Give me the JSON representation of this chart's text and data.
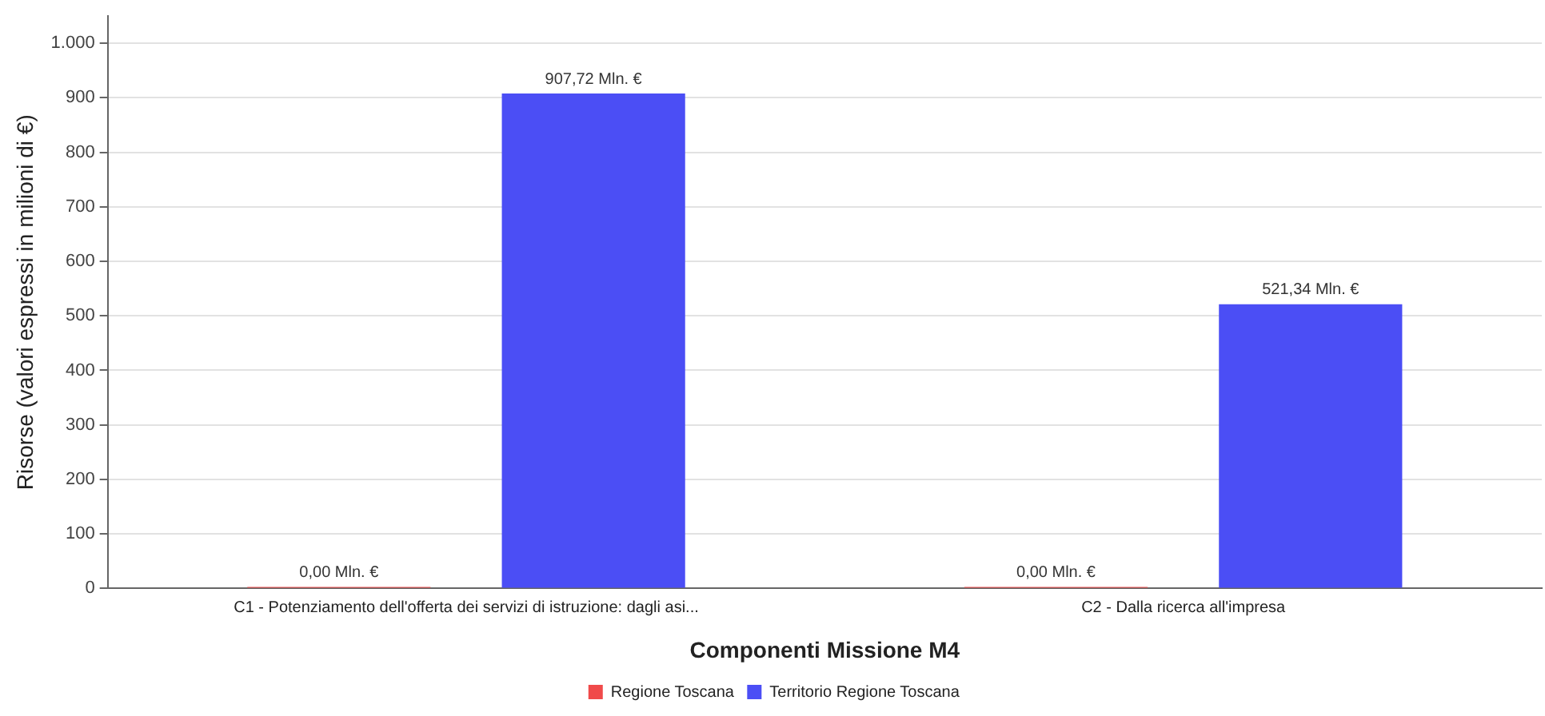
{
  "chart_data": {
    "type": "bar",
    "xlabel": "Componenti Missione M4",
    "ylabel": "Risorse (valori espressi in milioni di €)",
    "categories": [
      "C1 - Potenziamento dell'offerta dei servizi di istruzione: dagli asi...",
      "C2 - Dalla ricerca all'impresa"
    ],
    "series": [
      {
        "name": "Regione Toscana",
        "color": "#f04a4a",
        "values": [
          0,
          0
        ],
        "value_labels": [
          "0,00 Mln. €",
          "0,00 Mln. €"
        ]
      },
      {
        "name": "Territorio Regione Toscana",
        "color": "#4b4ef5",
        "values": [
          907.72,
          521.34
        ],
        "value_labels": [
          "907,72 Mln. €",
          "521,34 Mln. €"
        ]
      }
    ],
    "ylim": [
      0,
      1050
    ],
    "yticks": [
      0,
      100,
      200,
      300,
      400,
      500,
      600,
      700,
      800,
      900,
      {
        "value": 1000,
        "label": "1.000"
      }
    ],
    "grid": "y",
    "legend": "bottom"
  }
}
